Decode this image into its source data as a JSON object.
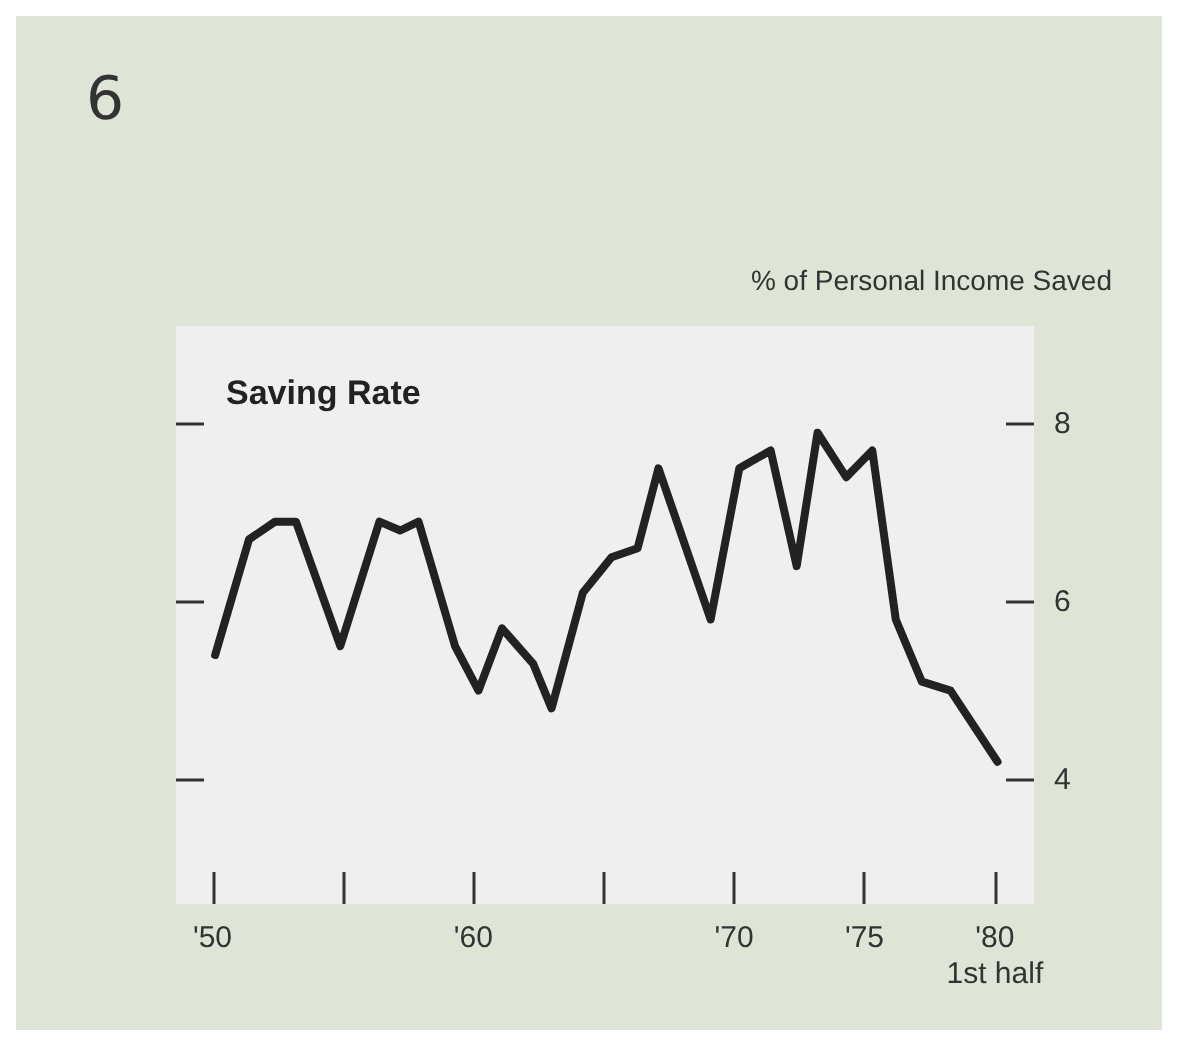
{
  "chart_data": {
    "type": "line",
    "title": "Saving Rate",
    "ylabel": "% of Personal Income Saved",
    "annotations": [
      "6"
    ],
    "series": [
      {
        "color": "#222222",
        "x": [
          1950.1,
          1951.4,
          1952.4,
          1953.2,
          1954.9,
          1956.4,
          1957.2,
          1957.9,
          1959.3,
          1960.2,
          1961.1,
          1962.3,
          1963.0,
          1964.2,
          1965.3,
          1966.3,
          1967.1,
          1969.1,
          1970.2,
          1971.4,
          1972.4,
          1973.2,
          1974.3,
          1975.3,
          1976.2,
          1977.2,
          1978.3,
          1980.1
        ],
        "values": [
          5.4,
          6.7,
          6.9,
          6.9,
          5.5,
          6.9,
          6.8,
          6.9,
          5.5,
          5.0,
          5.7,
          5.3,
          4.8,
          6.1,
          6.5,
          6.6,
          7.5,
          5.8,
          7.5,
          7.7,
          6.4,
          7.9,
          7.4,
          7.7,
          5.8,
          5.1,
          5.0,
          4.2
        ]
      }
    ],
    "xlim": [
      1948.6,
      1981.5
    ],
    "xticks": [
      {
        "value": 1950,
        "label": "'50"
      },
      {
        "value": 1955,
        "label": null
      },
      {
        "value": 1960,
        "label": "'60"
      },
      {
        "value": 1965,
        "label": null
      },
      {
        "value": 1970,
        "label": "'70"
      },
      {
        "value": 1975,
        "label": "'75"
      },
      {
        "value": 1980,
        "label": "'80\n1st half"
      }
    ],
    "ylim": [
      2.6,
      9.1
    ],
    "yticks": [
      4,
      6,
      8
    ],
    "grid": false,
    "marker": "none",
    "line_style": "solid"
  }
}
